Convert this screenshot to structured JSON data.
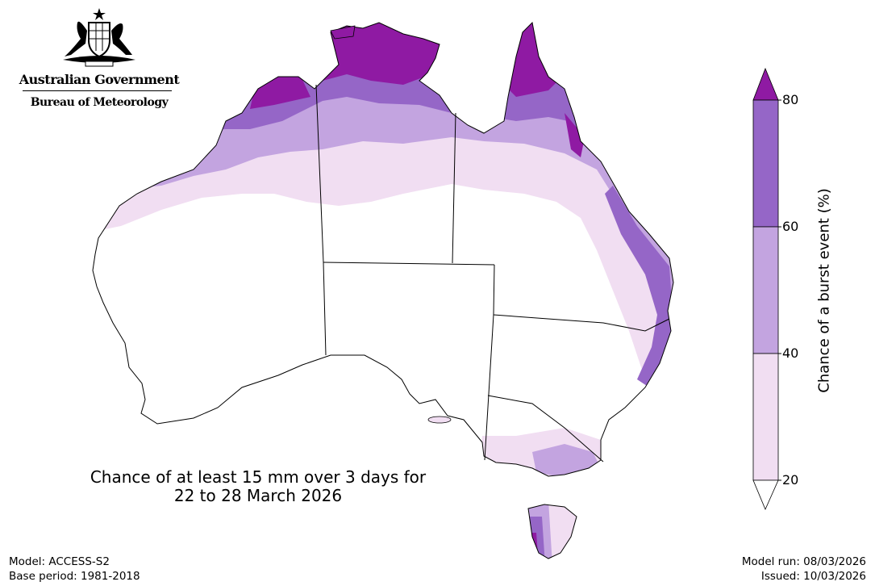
{
  "header": {
    "government": "Australian Government",
    "agency": "Bureau of Meteorology"
  },
  "map": {
    "title_line1": "Chance of at least 15 mm over 3 days for",
    "title_line2": "22 to 28 March 2026"
  },
  "colorbar": {
    "label": "Chance of a burst event (%)",
    "ticks": [
      "20",
      "40",
      "60",
      "80"
    ],
    "colors": {
      "below_20": "#ffffff",
      "20_40": "#f1def2",
      "40_60": "#c3a4e0",
      "60_80": "#9566c7",
      "above_80": "#8f1aa3"
    }
  },
  "footer": {
    "model": "Model: ACCESS-S2",
    "base_period": "Base period: 1981-2018",
    "model_run": "Model run: 08/03/2026",
    "issued": "Issued: 10/03/2026"
  }
}
